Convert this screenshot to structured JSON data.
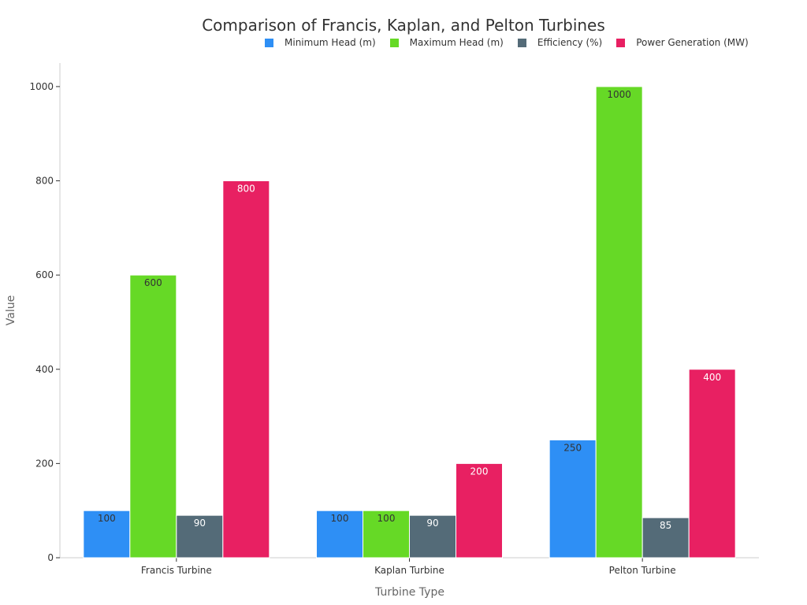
{
  "chart_data": {
    "type": "bar",
    "title": "Comparison of Francis, Kaplan, and Pelton Turbines",
    "xlabel": "Turbine Type",
    "ylabel": "Value",
    "categories": [
      "Francis Turbine",
      "Kaplan Turbine",
      "Pelton Turbine"
    ],
    "series": [
      {
        "name": "Minimum Head (m)",
        "values": [
          100,
          100,
          250
        ],
        "color": "#2e8ff5",
        "label_color": "#333333"
      },
      {
        "name": "Maximum Head (m)",
        "values": [
          600,
          100,
          1000
        ],
        "color": "#66d926",
        "label_color": "#333333"
      },
      {
        "name": "Efficiency (%)",
        "values": [
          90,
          90,
          85
        ],
        "color": "#546b78",
        "label_color": "#ffffff"
      },
      {
        "name": "Power Generation (MW)",
        "values": [
          800,
          200,
          400
        ],
        "color": "#e82062",
        "label_color": "#ffffff"
      }
    ],
    "ylim": [
      0,
      1050
    ],
    "yticks": [
      0,
      200,
      400,
      600,
      800,
      1000
    ],
    "grid": false,
    "legend_position": "top-right"
  }
}
